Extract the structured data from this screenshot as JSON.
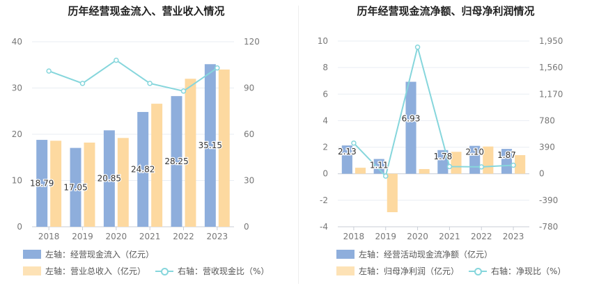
{
  "chart_data": [
    {
      "type": "bar",
      "title": "历年经营现金流入、营业收入情况",
      "categories": [
        "2018",
        "2019",
        "2020",
        "2021",
        "2022",
        "2023"
      ],
      "y_left_ticks": [
        "0",
        "10",
        "20",
        "30",
        "40"
      ],
      "y_right_ticks": [
        "0",
        "30",
        "60",
        "90",
        "120"
      ],
      "ylim_left": [
        0,
        40
      ],
      "ylim_right": [
        0,
        120
      ],
      "series": [
        {
          "name": "左轴：经营现金流入（亿元）",
          "type": "bar",
          "axis": "left",
          "color": "#8eaedc",
          "values": [
            18.79,
            17.05,
            20.85,
            24.82,
            28.25,
            35.15
          ],
          "labels": [
            "18.79",
            "17.05",
            "20.85",
            "24.82",
            "28.25",
            "35.15"
          ]
        },
        {
          "name": "左轴：营业总收入（亿元）",
          "type": "bar",
          "axis": "left",
          "color": "#fdd9a0",
          "values": [
            18.6,
            18.2,
            19.2,
            26.6,
            32.0,
            34.0
          ]
        },
        {
          "name": "右轴：营收现金比（%）",
          "type": "line",
          "axis": "right",
          "color": "#86d6dc",
          "values": [
            101,
            93,
            108,
            93,
            88,
            103
          ]
        }
      ],
      "grid": true
    },
    {
      "type": "bar",
      "title": "历年经营现金流净额、归母净利润情况",
      "categories": [
        "2018",
        "2019",
        "2020",
        "2021",
        "2022",
        "2023"
      ],
      "y_left_ticks": [
        "-4",
        "-2",
        "0",
        "2",
        "4",
        "6",
        "8",
        "10"
      ],
      "y_right_ticks": [
        "-780",
        "-390",
        "0",
        "390",
        "780",
        "1,170",
        "1,560",
        "1,950"
      ],
      "ylim_left": [
        -4,
        10
      ],
      "ylim_right": [
        -780,
        1950
      ],
      "series": [
        {
          "name": "左轴：经营活动现金流净额（亿元）",
          "type": "bar",
          "axis": "left",
          "color": "#8eaedc",
          "values": [
            2.13,
            1.11,
            6.93,
            1.78,
            2.1,
            1.87
          ],
          "labels": [
            "2.13",
            "1.11",
            "6.93",
            "1.78",
            "2.10",
            "1.87"
          ]
        },
        {
          "name": "左轴：归母净利润（亿元）",
          "type": "bar",
          "axis": "left",
          "color": "#fdd9a0",
          "values": [
            0.45,
            -2.9,
            0.35,
            1.65,
            2.05,
            1.4
          ]
        },
        {
          "name": "右轴：净现比（%）",
          "type": "line",
          "axis": "right",
          "color": "#86d6dc",
          "values": [
            450,
            -35,
            1860,
            105,
            100,
            125
          ]
        }
      ],
      "grid": true
    }
  ]
}
